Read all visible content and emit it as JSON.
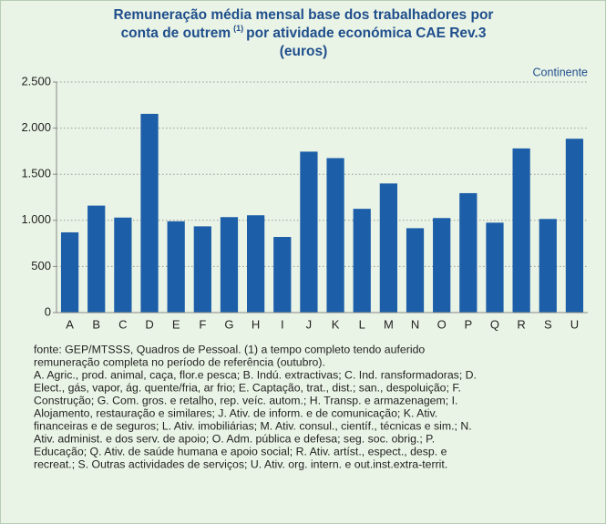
{
  "chart_data": {
    "type": "bar",
    "title": [
      "Remuneração média mensal base dos trabalhadores por",
      "conta de outrem",
      "(1)",
      "por atividade económica CAE Rev.3",
      "(euros)"
    ],
    "annotation": "Continente",
    "categories": [
      "A",
      "B",
      "C",
      "D",
      "E",
      "F",
      "G",
      "H",
      "I",
      "J",
      "K",
      "L",
      "M",
      "N",
      "O",
      "P",
      "Q",
      "R",
      "S",
      "U"
    ],
    "values": [
      870,
      1160,
      1030,
      2155,
      990,
      935,
      1035,
      1055,
      820,
      1745,
      1675,
      1125,
      1400,
      915,
      1025,
      1295,
      975,
      1780,
      1015,
      1885
    ],
    "color": "#1c5ea8",
    "ylim": [
      0,
      2500
    ],
    "yticks": [
      0,
      500,
      {
        "value": 1000,
        "label": "1.000"
      },
      {
        "value": 1500,
        "label": "1.500"
      },
      {
        "value": 2000,
        "label": "2.000"
      },
      {
        "value": 2500,
        "label": "2.500"
      }
    ],
    "grid": true,
    "footnote": [
      "fonte: GEP/MTSSS, Quadros de Pessoal.  (1) a tempo completo tendo auferido",
      "remuneração completa no período de referência (outubro).",
      "A. Agric., prod. animal, caça, flor.e pesca; B. Indú. extractivas; C. Ind. ransformadoras; D.",
      "Elect., gás, vapor, ág. quente/fria, ar frio; E. Captação, trat., dist.; san., despoluição; F.",
      "Construção; G. Com. gros. e retalho, rep. veíc. autom.; H. Transp. e armazenagem; I.",
      "Alojamento, restauração e similares; J. Ativ. de inform. e de comunicação; K. Ativ.",
      "financeiras e de seguros; L. Ativ. imobiliárias; M. Ativ. consul., científ., técnicas e sim.; N.",
      "Ativ. administ. e dos serv. de apoio; O. Adm. pública e defesa; seg. soc. obrig.; P.",
      "Educação; Q. Ativ. de saúde humana e apoio social; R. Ativ. artíst., espect., desp. e",
      "recreat.; S. Outras actividades de serviços; U. Ativ. org. intern. e out.inst.extra-territ."
    ]
  }
}
